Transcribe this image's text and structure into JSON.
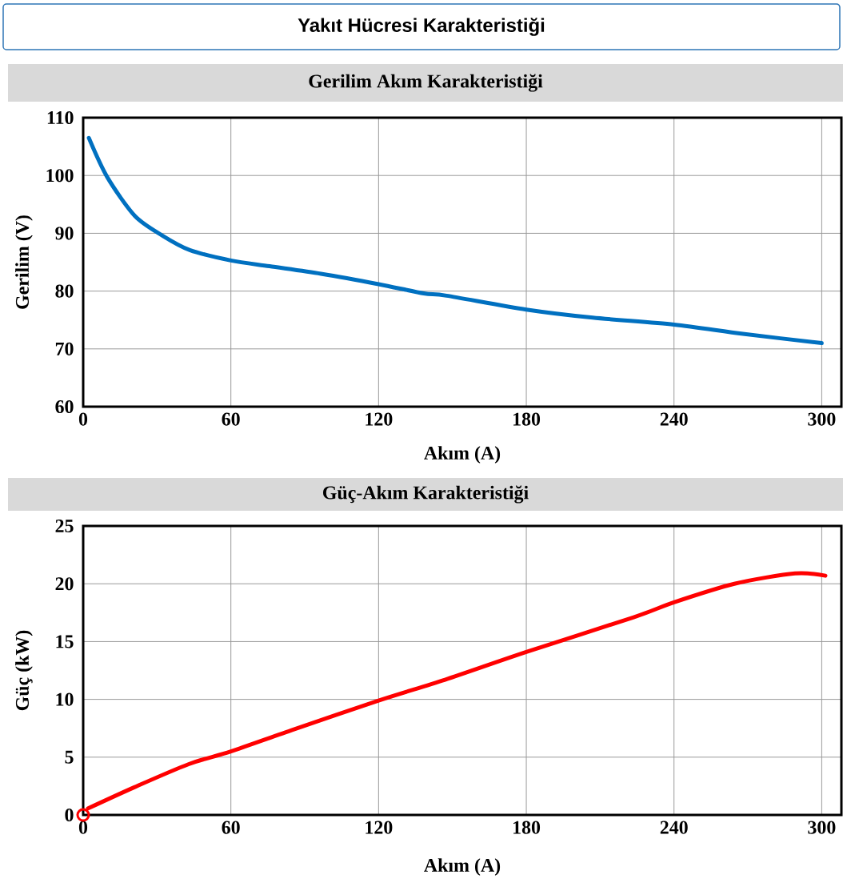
{
  "chart_data": [
    {
      "type": "other",
      "title": "Yakıt Hücresi Karakteristiği"
    },
    {
      "type": "line",
      "title": "Gerilim Akım Karakteristiği",
      "xlabel": "Akım (A)",
      "ylabel": "Gerilim (V)",
      "xlim": [
        0,
        308
      ],
      "xticks": [
        0,
        60,
        120,
        180,
        240,
        300
      ],
      "ylim": [
        60,
        110
      ],
      "yticks": [
        60,
        70,
        80,
        90,
        100,
        110
      ],
      "grid": true,
      "series": [
        {
          "color": "#0070c0",
          "x": [
            2.3,
            9.8,
            21,
            32.2,
            43.3,
            60,
            75.7,
            96.6,
            120,
            138.3,
            147.6,
            180,
            207,
            240,
            268,
            300
          ],
          "values": [
            106.5,
            99.7,
            93.0,
            89.6,
            87.1,
            85.3,
            84.3,
            83.0,
            81.2,
            79.6,
            79.2,
            76.8,
            75.4,
            74.2,
            72.6,
            71.0
          ]
        }
      ]
    },
    {
      "type": "line",
      "title": "Güç-Akım Karakteristiği",
      "xlabel": "Akım (A)",
      "ylabel": "Güç (kW)",
      "xlim": [
        0,
        308
      ],
      "xticks": [
        0,
        60,
        120,
        180,
        240,
        300
      ],
      "ylim": [
        0,
        25
      ],
      "yticks": [
        0,
        5,
        10,
        15,
        20,
        25
      ],
      "grid": true,
      "series": [
        {
          "color": "#ff0000",
          "x": [
            2,
            20.8,
            42.9,
            60,
            85.6,
            120,
            147,
            180,
            223.6,
            240,
            264.5,
            289.1,
            301.5
          ],
          "values": [
            0.57,
            2.4,
            4.4,
            5.5,
            7.4,
            9.9,
            11.7,
            14.1,
            17.1,
            18.4,
            20.0,
            20.9,
            20.7
          ]
        },
        {
          "type": "scatter",
          "marker": "circle",
          "color": "#ff0000",
          "x": [
            0
          ],
          "values": [
            0
          ]
        }
      ]
    }
  ]
}
